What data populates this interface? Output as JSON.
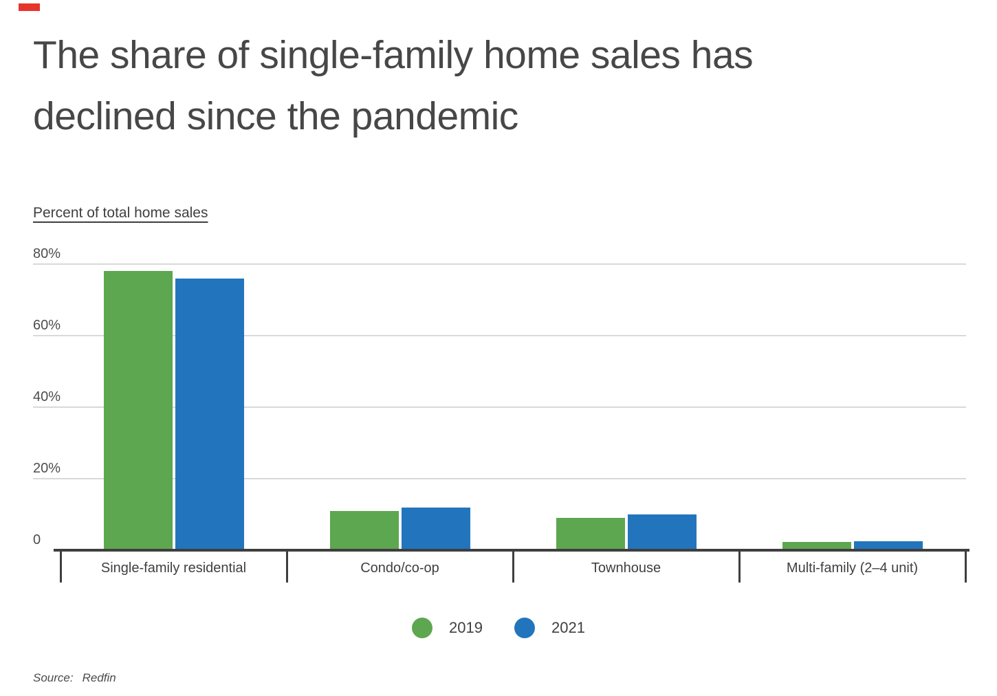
{
  "chart": {
    "title_line1": "The share of single-family home sales has",
    "title_line2": "declined since the pandemic",
    "y_axis_title": "Percent of total home sales"
  },
  "chart_data": {
    "type": "bar",
    "title": "The share of single-family home sales has declined since the pandemic",
    "ylabel": "Percent of total home sales",
    "categories": [
      "Single-family residential",
      "Condo/co-op",
      "Townhouse",
      "Multi-family (2–4 unit)"
    ],
    "series": [
      {
        "name": "2019",
        "color": "#5ca750",
        "values": [
          78,
          11,
          9,
          2.3
        ]
      },
      {
        "name": "2021",
        "color": "#2275bd",
        "values": [
          76,
          12,
          10,
          2.5
        ]
      }
    ],
    "ylim": [
      0,
      80
    ],
    "yticks": [
      0,
      20,
      40,
      60,
      80
    ],
    "ytick_labels": [
      "0",
      "20%",
      "40%",
      "60%",
      "80%"
    ],
    "grid": true,
    "legend_position": "bottom"
  },
  "legend": {
    "items": [
      {
        "label": "2019",
        "color": "#5ca750"
      },
      {
        "label": "2021",
        "color": "#2275bd"
      }
    ]
  },
  "source": {
    "label": "Source:",
    "value": "Redfin"
  },
  "colors": {
    "accent_red": "#e6352b",
    "gridline": "#d9d9d9",
    "axis": "#3e3e3e",
    "title_text": "#474747",
    "label_text": "#3f3f3f"
  }
}
